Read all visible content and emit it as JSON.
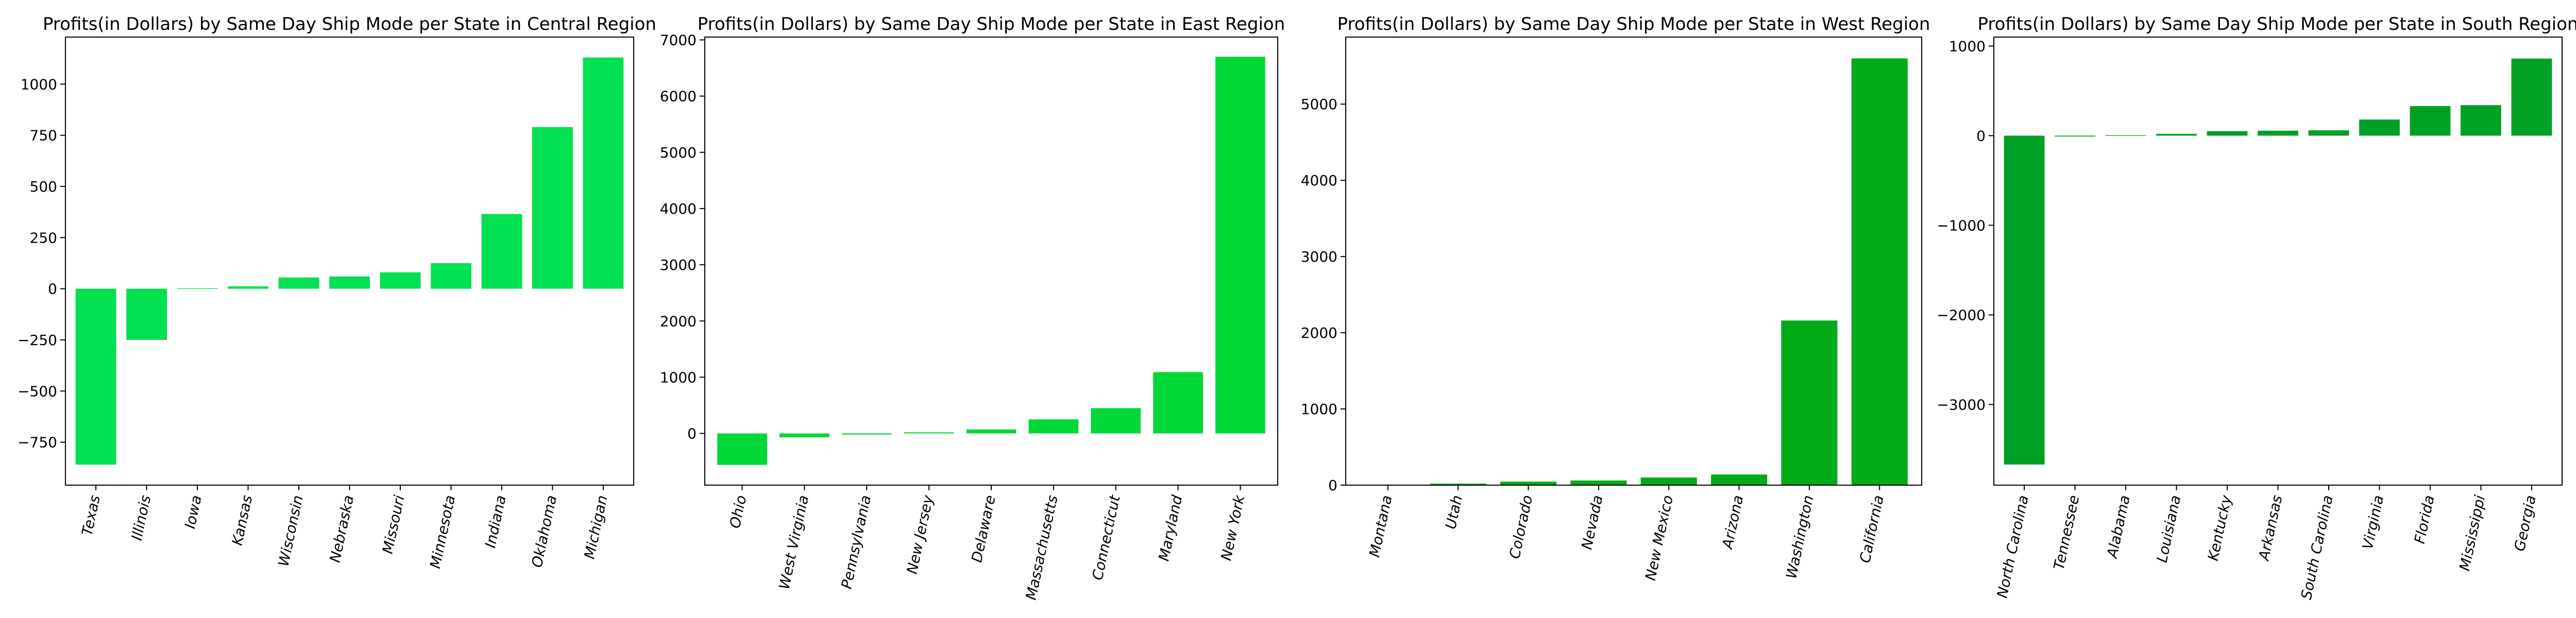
{
  "chart_data": [
    {
      "type": "bar",
      "title": "Profits(in Dollars) by Same Day Ship Mode per State in Central Region",
      "color": "#00e050",
      "categories": [
        "Texas",
        "Illinois",
        "Iowa",
        "Kansas",
        "Wisconsin",
        "Nebraska",
        "Missouri",
        "Minnesota",
        "Indiana",
        "Oklahoma",
        "Michigan"
      ],
      "values": [
        -860,
        -250,
        2,
        12,
        55,
        60,
        80,
        125,
        365,
        790,
        1130
      ],
      "ylim": [
        -960,
        1230
      ],
      "yticks": [
        -750,
        -500,
        -250,
        0,
        250,
        500,
        750,
        1000
      ],
      "ytick_labels": [
        "−750",
        "−500",
        "−250",
        "0",
        "250",
        "500",
        "750",
        "1000"
      ],
      "xlabel": "",
      "ylabel": "",
      "grid": false
    },
    {
      "type": "bar",
      "title": "Profits(in Dollars) by Same Day Ship Mode per State in East Region",
      "color": "#00d838",
      "categories": [
        "Ohio",
        "West Virginia",
        "Pennsylvania",
        "New Jersey",
        "Delaware",
        "Massachusetts",
        "Connecticut",
        "Maryland",
        "New York"
      ],
      "values": [
        -560,
        -70,
        -20,
        20,
        70,
        250,
        450,
        1090,
        6700
      ],
      "ylim": [
        -920,
        7050
      ],
      "yticks": [
        0,
        1000,
        2000,
        3000,
        4000,
        5000,
        6000,
        7000
      ],
      "ytick_labels": [
        "0",
        "1000",
        "2000",
        "3000",
        "4000",
        "5000",
        "6000",
        "7000"
      ],
      "xlabel": "",
      "ylabel": "",
      "grid": false
    },
    {
      "type": "bar",
      "title": "Profits(in Dollars) by Same Day Ship Mode per State in West Region",
      "color": "#00ab18",
      "categories": [
        "Montana",
        "Utah",
        "Colorado",
        "Nevada",
        "New Mexico",
        "Arizona",
        "Washington",
        "California"
      ],
      "values": [
        5,
        20,
        45,
        60,
        100,
        140,
        2160,
        5600
      ],
      "ylim": [
        0,
        5880
      ],
      "yticks": [
        0,
        1000,
        2000,
        3000,
        4000,
        5000
      ],
      "ytick_labels": [
        "0",
        "1000",
        "2000",
        "3000",
        "4000",
        "5000"
      ],
      "xlabel": "",
      "ylabel": "",
      "grid": false
    },
    {
      "type": "bar",
      "title": "Profits(in Dollars) by Same Day Ship Mode per State in South Region",
      "color": "#00a025",
      "categories": [
        "North Carolina",
        "Tennessee",
        "Alabama",
        "Louisiana",
        "Kentucky",
        "Arkansas",
        "South Carolina",
        "Virginia",
        "Florida",
        "Mississippi",
        "Georgia"
      ],
      "values": [
        -3670,
        -10,
        5,
        20,
        50,
        55,
        60,
        180,
        330,
        340,
        860
      ],
      "ylim": [
        -3900,
        1100
      ],
      "yticks": [
        -3000,
        -2000,
        -1000,
        0,
        1000
      ],
      "ytick_labels": [
        "−3000",
        "−2000",
        "−1000",
        "0",
        "1000"
      ],
      "xlabel": "",
      "ylabel": "",
      "grid": false
    }
  ]
}
